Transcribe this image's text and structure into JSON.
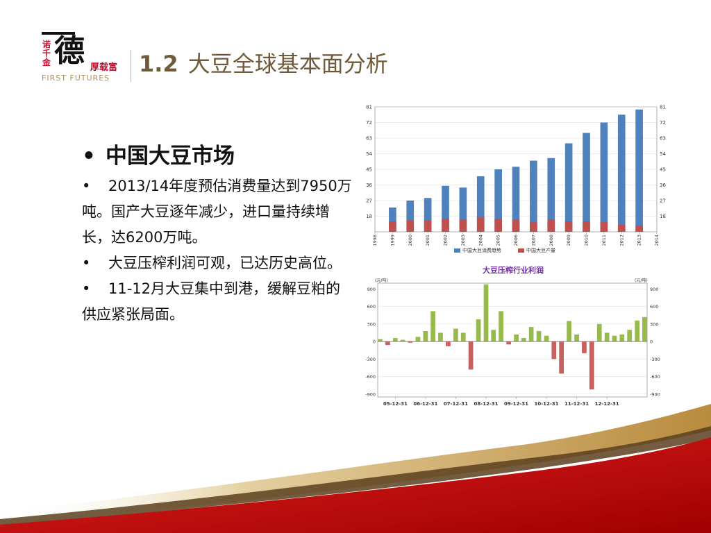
{
  "logo": {
    "small_chars": "诺千金",
    "big_char": "德",
    "side_text": "厚载富",
    "english": "FIRST FUTURES"
  },
  "title": {
    "number": "1.2",
    "text": "大豆全球基本面分析"
  },
  "bullets": {
    "heading": "中国大豆市场",
    "items": [
      "2013/14年度预估消费量达到7950万吨。国产大豆逐年减少，进口量持续增长，达6200万吨。",
      "大豆压榨利润可观，已达历史高位。",
      "11-12月大豆集中到港，缓解豆粕的供应紧张局面。"
    ],
    "marker": "•"
  },
  "colors": {
    "title_brown": "#6f5a3a",
    "logo_red": "#c8102e",
    "bar_blue": "#4f81bd",
    "bar_red": "#c0504d",
    "profit_green": "#8db33a",
    "profit_red": "#c0504d",
    "chart2_title": "#7030a0",
    "wave_red": "#c00000",
    "wave_gold": "#c9a25a"
  },
  "chart_data": [
    {
      "type": "bar",
      "title": "",
      "categories": [
        "1999",
        "2000",
        "2001",
        "2002",
        "2003",
        "2004",
        "2005",
        "2006",
        "2007",
        "2008",
        "2009",
        "2010",
        "2011",
        "2012",
        "2013"
      ],
      "x_ticks": [
        "1998",
        "1999",
        "2000",
        "2001",
        "2002",
        "2003",
        "2004",
        "2005",
        "2006",
        "2007",
        "2008",
        "2009",
        "2010",
        "2011",
        "2012",
        "2013",
        "2014"
      ],
      "series": [
        {
          "name": "中国大豆消费趋势",
          "color": "#4f81bd",
          "values": [
            23,
            27,
            28.5,
            35.5,
            34.5,
            41,
            45,
            46.5,
            50,
            51.5,
            60,
            66,
            72,
            76.5,
            79.5
          ]
        },
        {
          "name": "中国大豆产量",
          "color": "#c0504d",
          "values": [
            15,
            15.5,
            15.5,
            16.5,
            16,
            17.5,
            16.5,
            16,
            14.5,
            16,
            15,
            15,
            14.5,
            13,
            12.5
          ]
        }
      ],
      "ylim": [
        9,
        81
      ],
      "y_ticks": [
        18,
        27,
        36,
        45,
        54,
        63,
        72,
        81
      ],
      "y2_ticks": [
        18,
        27,
        36,
        45,
        54,
        63,
        72,
        81
      ],
      "legend": "bottom-center",
      "grid": true
    },
    {
      "type": "bar",
      "title": "大豆压榨行业利润",
      "ylabel": "(元/吨)",
      "y2label": "(元/吨)",
      "ylim": [
        -950,
        1000
      ],
      "y_ticks": [
        -900,
        -600,
        -300,
        0,
        300,
        600,
        900
      ],
      "y2_ticks": [
        -900,
        -600,
        -300,
        0,
        300,
        600,
        900
      ],
      "x_ticks": [
        "05-12-31",
        "06-12-31",
        "07-12-31",
        "08-12-31",
        "09-12-31",
        "10-12-31",
        "11-12-31",
        "12-12-31"
      ],
      "x_range": [
        "2005-06-01",
        "2014-04-30"
      ],
      "series": [
        {
          "name": "",
          "color_positive": "#8db33a",
          "color_negative": "#c0504d",
          "points": [
            [
              "2005-06-30",
              40
            ],
            [
              "2005-09-30",
              -60
            ],
            [
              "2005-12-31",
              60
            ],
            [
              "2006-03-31",
              30
            ],
            [
              "2006-06-30",
              -20
            ],
            [
              "2006-09-30",
              80
            ],
            [
              "2006-12-31",
              180
            ],
            [
              "2007-03-31",
              520
            ],
            [
              "2007-06-30",
              150
            ],
            [
              "2007-09-30",
              -80
            ],
            [
              "2007-12-31",
              220
            ],
            [
              "2008-03-31",
              150
            ],
            [
              "2008-06-30",
              -480
            ],
            [
              "2008-09-30",
              380
            ],
            [
              "2008-12-31",
              980
            ],
            [
              "2009-03-31",
              200
            ],
            [
              "2009-06-30",
              520
            ],
            [
              "2009-09-30",
              -50
            ],
            [
              "2009-12-31",
              120
            ],
            [
              "2010-03-31",
              60
            ],
            [
              "2010-06-30",
              250
            ],
            [
              "2010-09-30",
              180
            ],
            [
              "2010-12-31",
              100
            ],
            [
              "2011-03-31",
              -300
            ],
            [
              "2011-06-30",
              -550
            ],
            [
              "2011-09-30",
              350
            ],
            [
              "2011-12-31",
              120
            ],
            [
              "2012-03-31",
              -200
            ],
            [
              "2012-06-30",
              -820
            ],
            [
              "2012-09-30",
              300
            ],
            [
              "2012-12-31",
              150
            ],
            [
              "2013-03-31",
              100
            ],
            [
              "2013-06-30",
              120
            ],
            [
              "2013-09-30",
              200
            ],
            [
              "2013-12-31",
              360
            ],
            [
              "2014-03-31",
              420
            ]
          ]
        }
      ],
      "grid": true
    }
  ]
}
